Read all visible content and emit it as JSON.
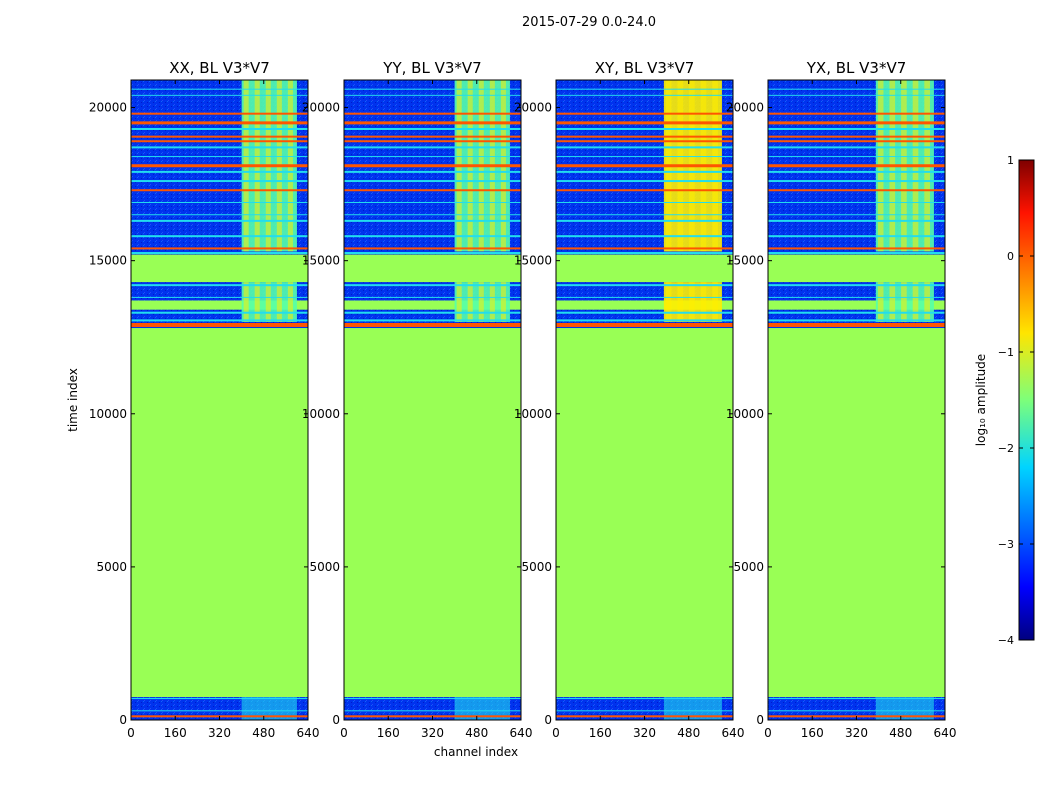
{
  "figure_title": "2015-07-29 0.0-24.0",
  "chart_data": [
    {
      "type": "heatmap",
      "title": "XX, BL V3*V7",
      "xlabel": "channel index",
      "ylabel": "time index",
      "xlim": [
        0,
        640
      ],
      "ylim": [
        0,
        20900
      ],
      "xticks": [
        0,
        160,
        320,
        480,
        640
      ],
      "yticks": [
        0,
        5000,
        10000,
        15000,
        20000
      ]
    },
    {
      "type": "heatmap",
      "title": "YY, BL V3*V7",
      "xlabel": "channel index",
      "ylabel": "time index",
      "xlim": [
        0,
        640
      ],
      "ylim": [
        0,
        20900
      ],
      "xticks": [
        0,
        160,
        320,
        480,
        640
      ],
      "yticks": [
        0,
        5000,
        10000,
        15000,
        20000
      ]
    },
    {
      "type": "heatmap",
      "title": "XY, BL V3*V7",
      "xlabel": "channel index",
      "ylabel": "time index",
      "xlim": [
        0,
        640
      ],
      "ylim": [
        0,
        20900
      ],
      "xticks": [
        0,
        160,
        320,
        480,
        640
      ],
      "yticks": [
        0,
        5000,
        10000,
        15000,
        20000
      ]
    },
    {
      "type": "heatmap",
      "title": "YX, BL V3*V7",
      "xlabel": "channel index",
      "ylabel": "time index",
      "xlim": [
        0,
        640
      ],
      "ylim": [
        0,
        20900
      ],
      "xticks": [
        0,
        160,
        320,
        480,
        640
      ],
      "yticks": [
        0,
        5000,
        10000,
        15000,
        20000
      ]
    }
  ],
  "colorbar": {
    "label": "log₁₀ amplitude",
    "range": [
      -4,
      1
    ],
    "ticks": [
      -4,
      -3,
      -2,
      -1,
      0,
      1
    ],
    "tick_labels": [
      "−4",
      "−3",
      "−2",
      "−1",
      "0",
      "1"
    ]
  },
  "shared_xlabel": "channel index",
  "shared_ylabel": "time index",
  "heat_colors": {
    "flagged": "#99ff55",
    "background": "#0033ee",
    "deep": "#0000aa",
    "hot": "#ff5500",
    "warm": "#ffee00",
    "cyan": "#22ddee",
    "midgreen": "#55ffaa"
  }
}
